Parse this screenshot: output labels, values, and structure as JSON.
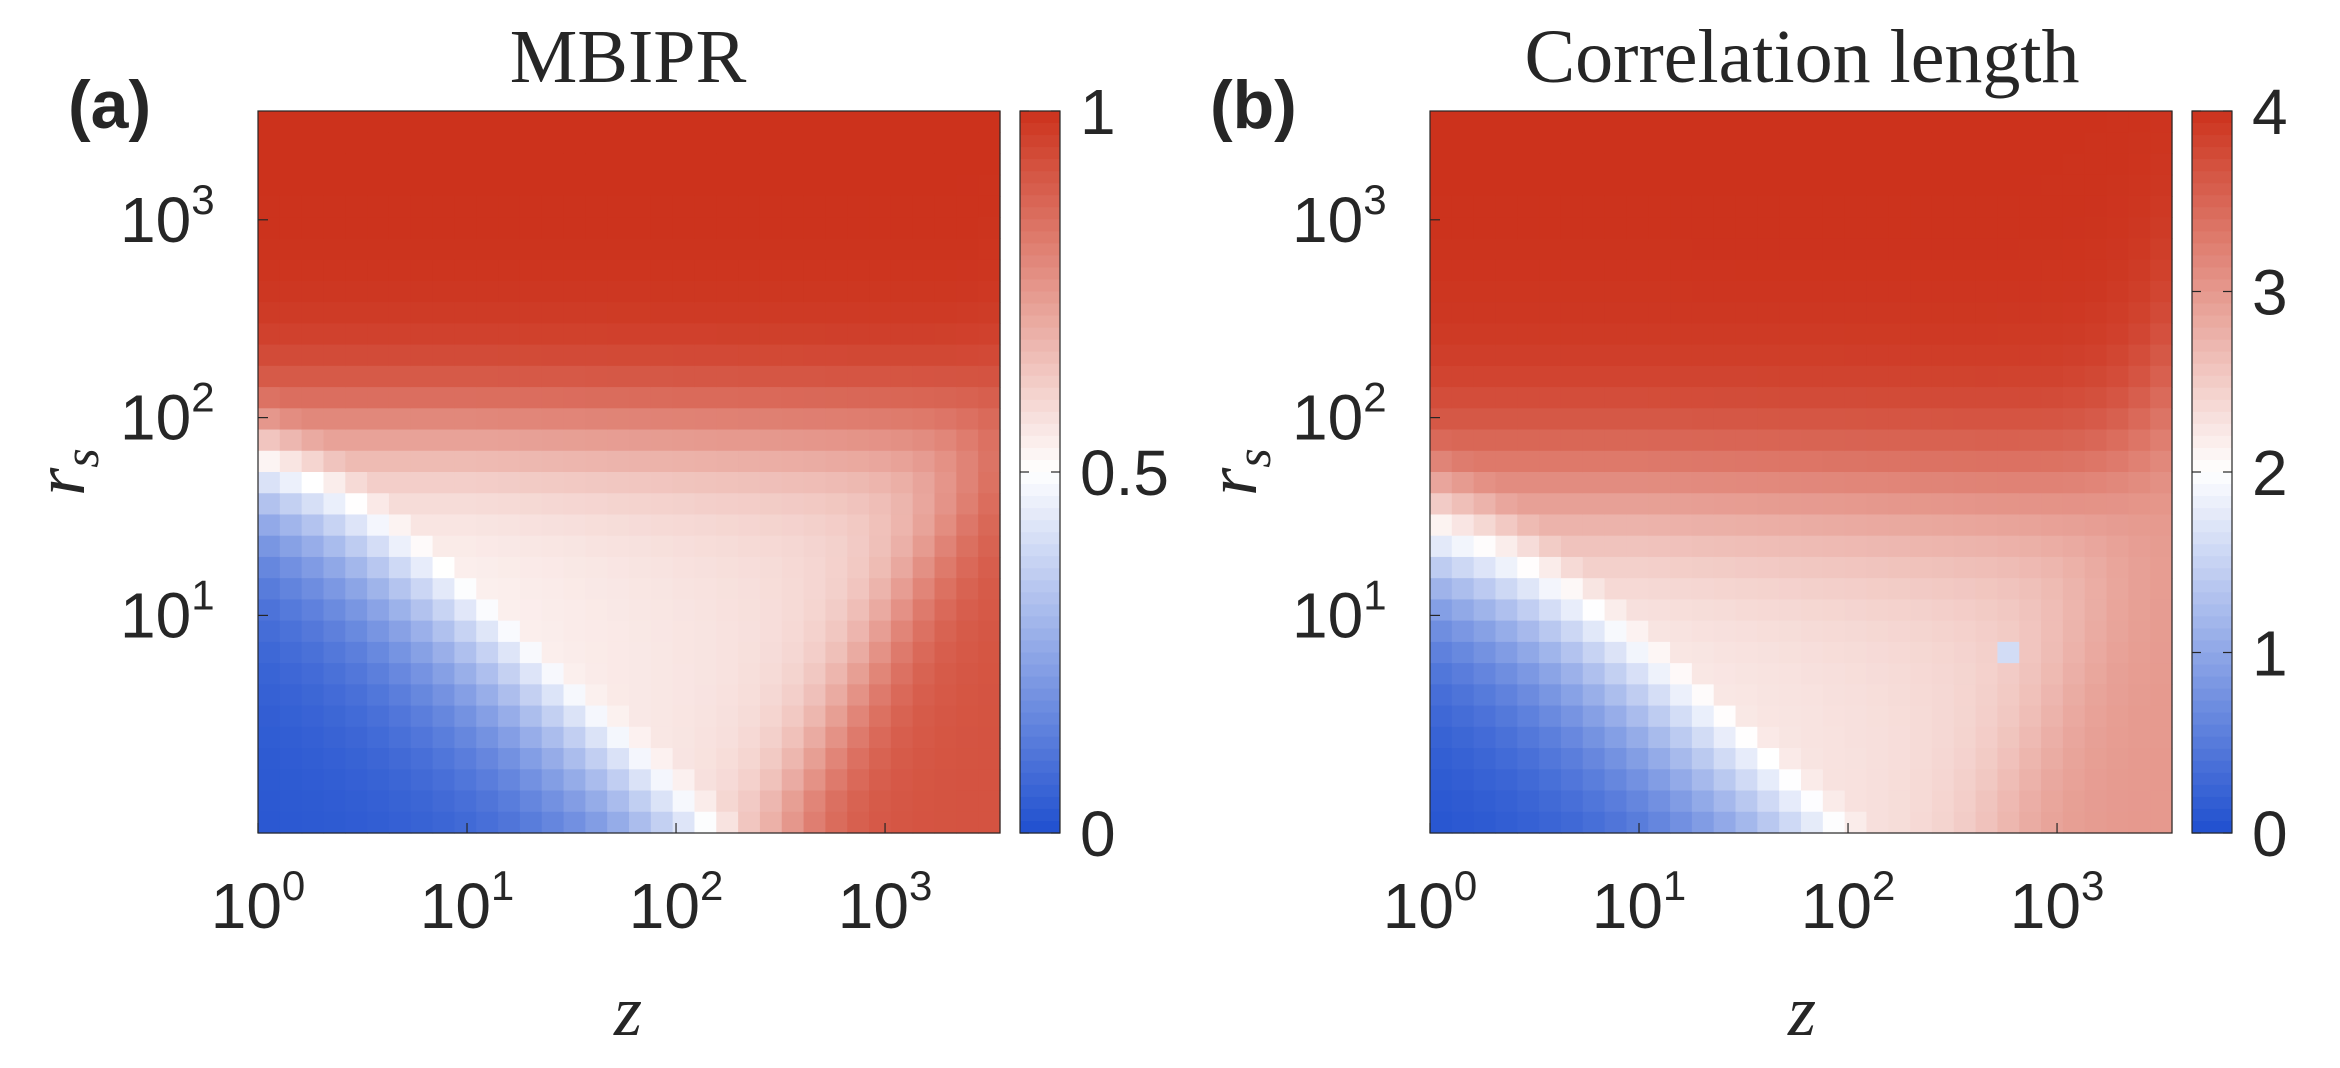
{
  "chart_data": [
    {
      "type": "heatmap",
      "panel_label": "(a)",
      "title": "MBIPR",
      "xlabel": "z",
      "ylabel_base": "r",
      "ylabel_sub": "s",
      "x_scale": "log",
      "y_scale": "log",
      "xlim_log10": [
        0,
        3.55
      ],
      "ylim_log10": [
        -0.1,
        3.55
      ],
      "x_ticks": [
        {
          "value": 1,
          "base": "10",
          "exp": "0"
        },
        {
          "value": 10,
          "base": "10",
          "exp": "1"
        },
        {
          "value": 100,
          "base": "10",
          "exp": "2"
        },
        {
          "value": 1000,
          "base": "10",
          "exp": "3"
        }
      ],
      "y_ticks": [
        {
          "value": 10,
          "base": "10",
          "exp": "1"
        },
        {
          "value": 100,
          "base": "10",
          "exp": "2"
        },
        {
          "value": 1000,
          "base": "10",
          "exp": "3"
        }
      ],
      "grid_cells": [
        34,
        34
      ],
      "colormap": {
        "low": "#1f4fcf",
        "mid": "#ffffff",
        "high": "#cc321c"
      },
      "colorbar": {
        "min": 0,
        "max": 1,
        "ticks": [
          {
            "value": 0,
            "label": "0"
          },
          {
            "value": 0.5,
            "label": "0.5"
          },
          {
            "value": 1,
            "label": "1"
          }
        ]
      },
      "field": {
        "low_corner_value": 0.0,
        "crossover_value": 0.5,
        "high_rs_value": 1.0,
        "high_z_value": 0.92
      },
      "annotations": [
        "blue (≈0) at small z and small r_s",
        "white (≈0.5) along diagonal crossover",
        "red (≈1) for r_s > ~300",
        "red lobe at large z and small r_s"
      ]
    },
    {
      "type": "heatmap",
      "panel_label": "(b)",
      "title": "Correlation length",
      "xlabel": "z",
      "ylabel_base": "r",
      "ylabel_sub": "s",
      "x_scale": "log",
      "y_scale": "log",
      "xlim_log10": [
        0,
        3.55
      ],
      "ylim_log10": [
        -0.1,
        3.55
      ],
      "x_ticks": [
        {
          "value": 1,
          "base": "10",
          "exp": "0"
        },
        {
          "value": 10,
          "base": "10",
          "exp": "1"
        },
        {
          "value": 100,
          "base": "10",
          "exp": "2"
        },
        {
          "value": 1000,
          "base": "10",
          "exp": "3"
        }
      ],
      "y_ticks": [
        {
          "value": 10,
          "base": "10",
          "exp": "1"
        },
        {
          "value": 100,
          "base": "10",
          "exp": "2"
        },
        {
          "value": 1000,
          "base": "10",
          "exp": "3"
        }
      ],
      "grid_cells": [
        34,
        34
      ],
      "colormap": {
        "low": "#1f4fcf",
        "mid": "#ffffff",
        "high": "#cc321c"
      },
      "colorbar": {
        "min": 0,
        "max": 4,
        "ticks": [
          {
            "value": 0,
            "label": "0"
          },
          {
            "value": 1,
            "label": "1"
          },
          {
            "value": 2,
            "label": "2"
          },
          {
            "value": 3,
            "label": "3"
          },
          {
            "value": 4,
            "label": "4"
          }
        ]
      },
      "field": {
        "low_corner_value": 0.0,
        "crossover_value": 2.0,
        "high_rs_value": 4.0,
        "high_z_value": 3.0
      },
      "annotations": [
        "blue (≈0–1) at small z and small r_s",
        "white (≈2) crossover region",
        "red (≈4) for large r_s",
        "pink lobe (≈3) at large z",
        "isolated light-blue cell near z≈500, r_s≈5"
      ]
    }
  ]
}
